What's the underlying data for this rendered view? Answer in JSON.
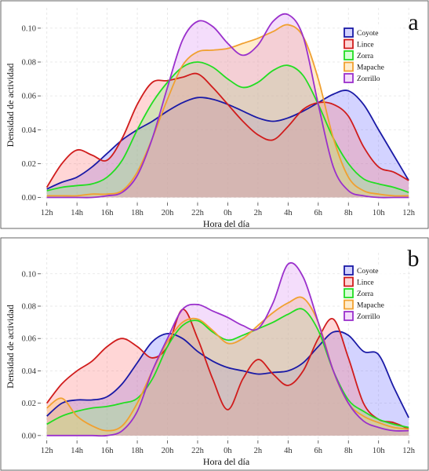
{
  "chart_data": [
    {
      "type": "area",
      "panel_label": "a",
      "xlabel": "Hora del día",
      "ylabel": "Densidad de actividad",
      "x_tick_labels": [
        "12h",
        "14h",
        "16h",
        "18h",
        "20h",
        "22h",
        "0h",
        "2h",
        "4h",
        "6h",
        "8h",
        "10h",
        "12h"
      ],
      "x_ticks": [
        12,
        14,
        16,
        18,
        20,
        22,
        24,
        26,
        28,
        30,
        32,
        34,
        36
      ],
      "xlim": [
        11.6,
        36.2
      ],
      "y_ticks": [
        0.0,
        0.02,
        0.04,
        0.06,
        0.08,
        0.1
      ],
      "y_tick_labels": [
        "0.00",
        "0.02",
        "0.04",
        "0.06",
        "0.08",
        "0.10"
      ],
      "ylim": [
        -0.003,
        0.112
      ],
      "grid": true,
      "legend_position": "top-right",
      "series": [
        {
          "name": "Coyote",
          "color": "#1a1aa6",
          "fill": "rgba(110,110,255,0.30)",
          "x": [
            12,
            13,
            14,
            15,
            16,
            17,
            18,
            19,
            20,
            21,
            22,
            23,
            24,
            25,
            26,
            27,
            28,
            29,
            30,
            31,
            32,
            33,
            34,
            35,
            36
          ],
          "y": [
            0.005,
            0.009,
            0.012,
            0.018,
            0.026,
            0.034,
            0.04,
            0.045,
            0.051,
            0.056,
            0.059,
            0.058,
            0.055,
            0.051,
            0.047,
            0.045,
            0.047,
            0.051,
            0.056,
            0.061,
            0.063,
            0.055,
            0.04,
            0.025,
            0.01
          ]
        },
        {
          "name": "Lince",
          "color": "#d01c1c",
          "fill": "rgba(255,120,120,0.30)",
          "x": [
            12,
            13,
            14,
            15,
            16,
            17,
            18,
            19,
            20,
            21,
            22,
            23,
            24,
            25,
            26,
            27,
            28,
            29,
            30,
            31,
            32,
            33,
            34,
            35,
            36
          ],
          "y": [
            0.006,
            0.02,
            0.028,
            0.025,
            0.022,
            0.035,
            0.055,
            0.068,
            0.069,
            0.071,
            0.073,
            0.065,
            0.055,
            0.045,
            0.037,
            0.034,
            0.042,
            0.052,
            0.056,
            0.055,
            0.048,
            0.03,
            0.018,
            0.015,
            0.01
          ]
        },
        {
          "name": "Zorra",
          "color": "#22dd22",
          "fill": "rgba(120,255,120,0.30)",
          "x": [
            12,
            13,
            14,
            15,
            16,
            17,
            18,
            19,
            20,
            21,
            22,
            23,
            24,
            25,
            26,
            27,
            28,
            29,
            30,
            31,
            32,
            33,
            34,
            35,
            36
          ],
          "y": [
            0.004,
            0.006,
            0.007,
            0.008,
            0.012,
            0.022,
            0.04,
            0.056,
            0.068,
            0.077,
            0.08,
            0.077,
            0.07,
            0.065,
            0.068,
            0.075,
            0.078,
            0.072,
            0.055,
            0.035,
            0.02,
            0.011,
            0.008,
            0.006,
            0.003
          ]
        },
        {
          "name": "Mapache",
          "color": "#f0a030",
          "fill": "rgba(255,200,110,0.35)",
          "x": [
            12,
            13,
            14,
            15,
            16,
            17,
            18,
            19,
            20,
            21,
            22,
            23,
            24,
            25,
            26,
            27,
            28,
            29,
            30,
            31,
            32,
            33,
            34,
            35,
            36
          ],
          "y": [
            0.001,
            0.001,
            0.001,
            0.002,
            0.002,
            0.004,
            0.015,
            0.035,
            0.058,
            0.078,
            0.086,
            0.087,
            0.088,
            0.091,
            0.094,
            0.098,
            0.102,
            0.095,
            0.07,
            0.035,
            0.012,
            0.004,
            0.002,
            0.001,
            0.001
          ]
        },
        {
          "name": "Zorrillo",
          "color": "#9a30cc",
          "fill": "rgba(210,120,240,0.25)",
          "x": [
            12,
            13,
            14,
            15,
            16,
            17,
            18,
            19,
            20,
            21,
            22,
            23,
            24,
            25,
            26,
            27,
            28,
            29,
            30,
            31,
            32,
            33,
            34,
            35,
            36
          ],
          "y": [
            0.0,
            0.0,
            0.0,
            0.0,
            0.001,
            0.003,
            0.013,
            0.035,
            0.065,
            0.093,
            0.104,
            0.101,
            0.091,
            0.084,
            0.09,
            0.104,
            0.108,
            0.095,
            0.055,
            0.018,
            0.004,
            0.001,
            0.0,
            0.0,
            0.0
          ]
        }
      ]
    },
    {
      "type": "area",
      "panel_label": "b",
      "xlabel": "Hora del día",
      "ylabel": "Densidad de actividad",
      "x_tick_labels": [
        "12h",
        "14h",
        "16h",
        "18h",
        "20h",
        "22h",
        "0h",
        "2h",
        "4h",
        "6h",
        "8h",
        "10h",
        "12h"
      ],
      "x_ticks": [
        12,
        14,
        16,
        18,
        20,
        22,
        24,
        26,
        28,
        30,
        32,
        34,
        36
      ],
      "xlim": [
        11.6,
        36.2
      ],
      "y_ticks": [
        0.0,
        0.02,
        0.04,
        0.06,
        0.08,
        0.1
      ],
      "y_tick_labels": [
        "0.00",
        "0.02",
        "0.04",
        "0.06",
        "0.08",
        "0.10"
      ],
      "ylim": [
        -0.003,
        0.113
      ],
      "grid": true,
      "legend_position": "top-right",
      "series": [
        {
          "name": "Coyote",
          "color": "#1a1aa6",
          "fill": "rgba(110,110,255,0.30)",
          "x": [
            12,
            13,
            14,
            15,
            16,
            17,
            18,
            19,
            20,
            21,
            22,
            23,
            24,
            25,
            26,
            27,
            28,
            29,
            30,
            31,
            32,
            33,
            34,
            35,
            36
          ],
          "y": [
            0.012,
            0.02,
            0.022,
            0.022,
            0.024,
            0.032,
            0.045,
            0.058,
            0.063,
            0.06,
            0.052,
            0.046,
            0.042,
            0.04,
            0.038,
            0.039,
            0.04,
            0.045,
            0.055,
            0.064,
            0.062,
            0.052,
            0.05,
            0.03,
            0.011
          ]
        },
        {
          "name": "Lince",
          "color": "#d01c1c",
          "fill": "rgba(255,120,120,0.30)",
          "x": [
            12,
            13,
            14,
            15,
            16,
            17,
            18,
            19,
            20,
            21,
            22,
            23,
            24,
            25,
            26,
            27,
            28,
            29,
            30,
            31,
            32,
            33,
            34,
            35,
            36
          ],
          "y": [
            0.02,
            0.032,
            0.04,
            0.046,
            0.055,
            0.06,
            0.055,
            0.048,
            0.055,
            0.078,
            0.06,
            0.035,
            0.016,
            0.035,
            0.047,
            0.038,
            0.031,
            0.04,
            0.06,
            0.072,
            0.048,
            0.02,
            0.01,
            0.008,
            0.004
          ]
        },
        {
          "name": "Zorra",
          "color": "#22dd22",
          "fill": "rgba(120,255,120,0.30)",
          "x": [
            12,
            13,
            14,
            15,
            16,
            17,
            18,
            19,
            20,
            21,
            22,
            23,
            24,
            25,
            26,
            27,
            28,
            29,
            30,
            31,
            32,
            33,
            34,
            35,
            36
          ],
          "y": [
            0.007,
            0.012,
            0.015,
            0.017,
            0.018,
            0.02,
            0.023,
            0.035,
            0.055,
            0.068,
            0.071,
            0.064,
            0.059,
            0.062,
            0.066,
            0.07,
            0.075,
            0.078,
            0.065,
            0.04,
            0.022,
            0.015,
            0.01,
            0.007,
            0.005
          ]
        },
        {
          "name": "Mapache",
          "color": "#f0a030",
          "fill": "rgba(255,200,110,0.35)",
          "x": [
            12,
            13,
            14,
            15,
            16,
            17,
            18,
            19,
            20,
            21,
            22,
            23,
            24,
            25,
            26,
            27,
            28,
            29,
            30,
            31,
            32,
            33,
            34,
            35,
            36
          ],
          "y": [
            0.017,
            0.023,
            0.012,
            0.006,
            0.003,
            0.006,
            0.02,
            0.04,
            0.058,
            0.07,
            0.072,
            0.065,
            0.057,
            0.06,
            0.068,
            0.076,
            0.082,
            0.085,
            0.07,
            0.04,
            0.02,
            0.012,
            0.008,
            0.005,
            0.004
          ]
        },
        {
          "name": "Zorrillo",
          "color": "#9a30cc",
          "fill": "rgba(210,120,240,0.25)",
          "x": [
            12,
            13,
            14,
            15,
            16,
            17,
            18,
            19,
            20,
            21,
            22,
            23,
            24,
            25,
            26,
            27,
            28,
            29,
            30,
            31,
            32,
            33,
            34,
            35,
            36
          ],
          "y": [
            0.0,
            0.0,
            0.0,
            0.0,
            0.0,
            0.003,
            0.015,
            0.04,
            0.06,
            0.078,
            0.081,
            0.077,
            0.073,
            0.068,
            0.066,
            0.082,
            0.106,
            0.098,
            0.07,
            0.04,
            0.02,
            0.009,
            0.005,
            0.003,
            0.003
          ]
        }
      ]
    }
  ]
}
